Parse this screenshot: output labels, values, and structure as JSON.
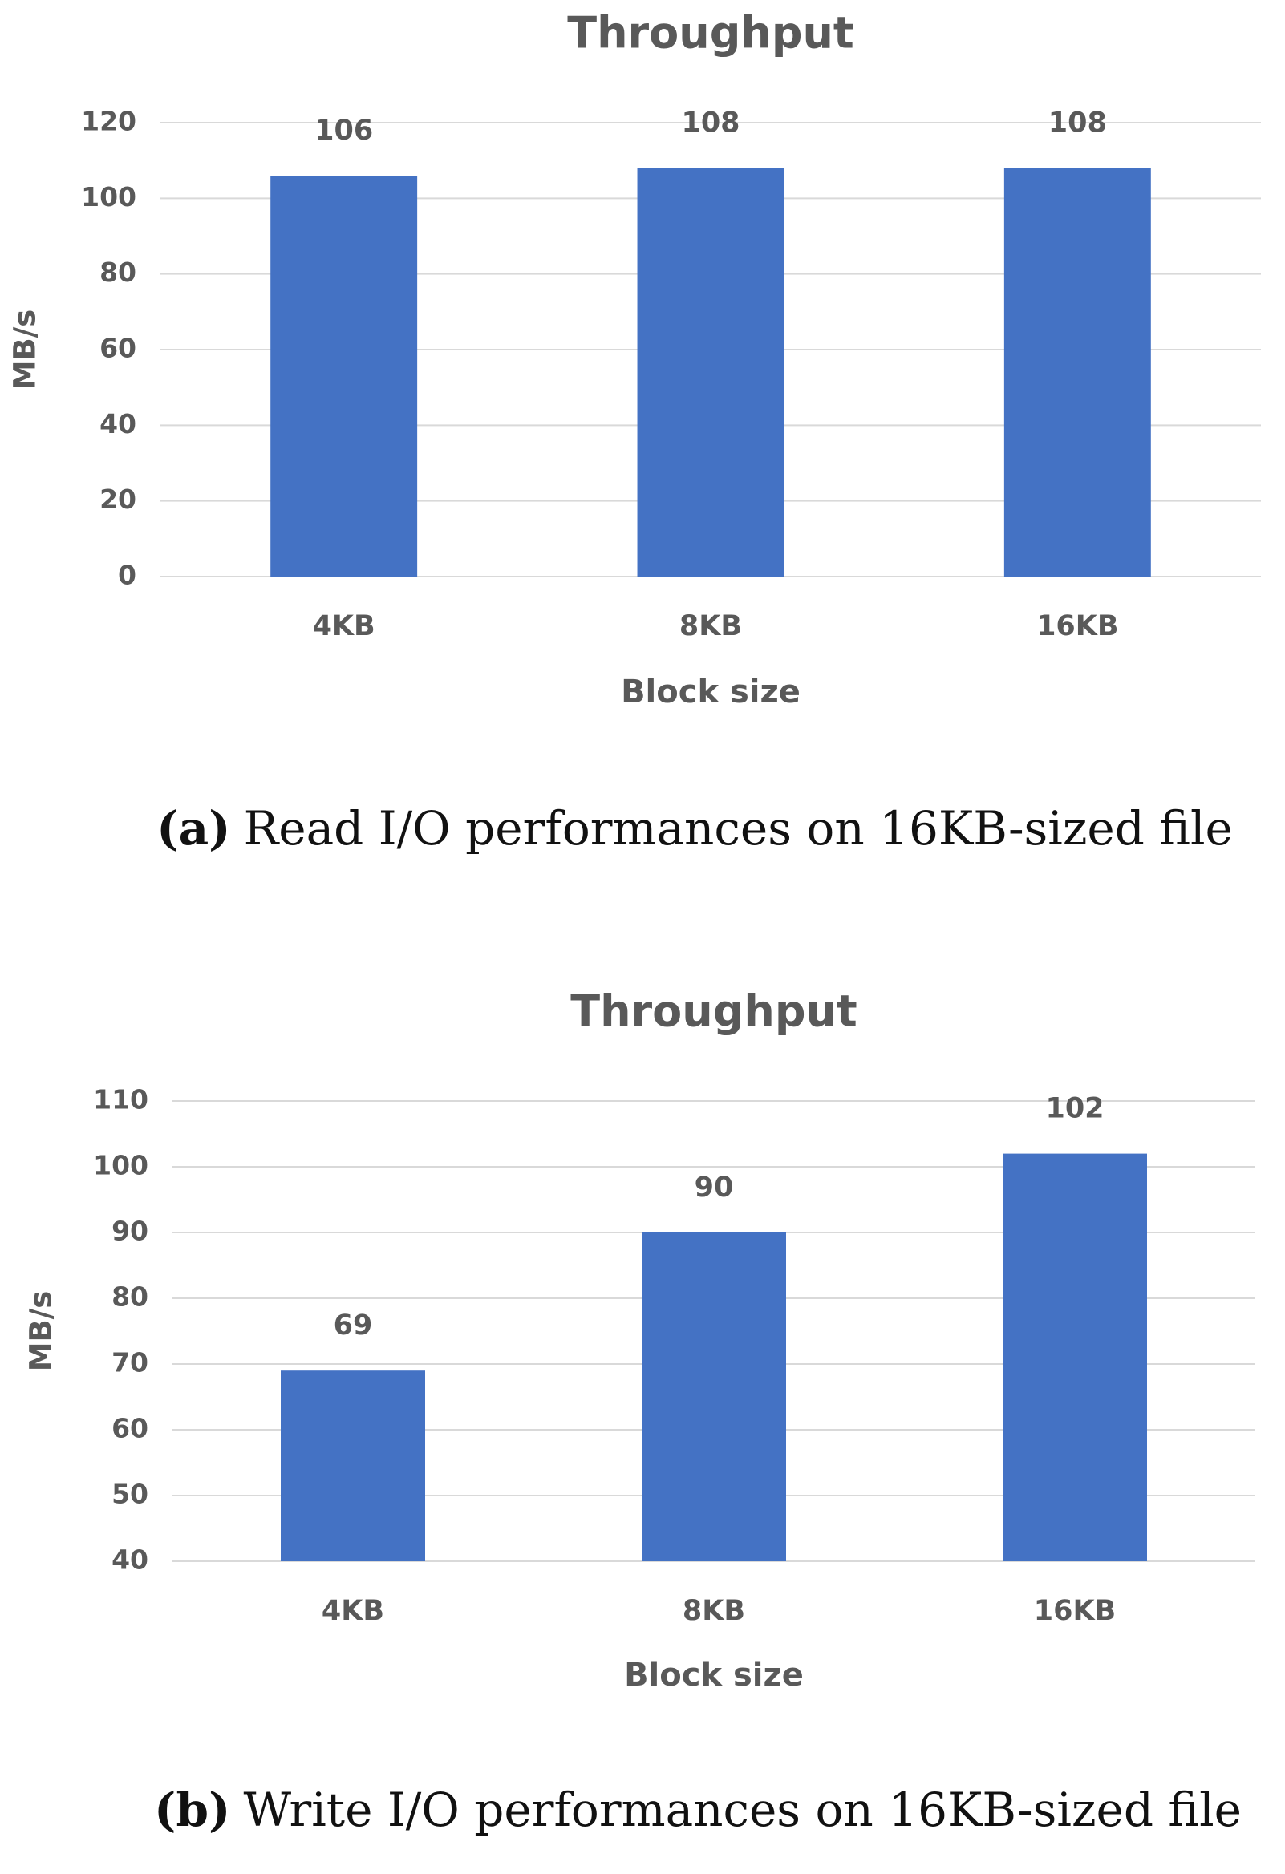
{
  "chart_data": [
    {
      "type": "bar",
      "title": "Throughput",
      "x_label": "Block size",
      "y_label": "MB/s",
      "categories": [
        "4KB",
        "8KB",
        "16KB"
      ],
      "values": [
        106,
        108,
        108
      ],
      "color": "#4472c4",
      "ylim": [
        0,
        120
      ],
      "yticks": [
        0,
        20,
        40,
        60,
        80,
        100,
        120
      ],
      "grid": true,
      "caption_label": "(a)",
      "caption": "Read I/O performances on 16KB-sized file"
    },
    {
      "type": "bar",
      "title": "Throughput",
      "x_label": "Block size",
      "y_label": "MB/s",
      "categories": [
        "4KB",
        "8KB",
        "16KB"
      ],
      "values": [
        69,
        90,
        102
      ],
      "color": "#4472c4",
      "ylim": [
        40,
        110
      ],
      "yticks": [
        40,
        50,
        60,
        70,
        80,
        90,
        100,
        110
      ],
      "grid": true,
      "caption_label": "(b)",
      "caption": "Write I/O performances on 16KB-sized file"
    }
  ]
}
